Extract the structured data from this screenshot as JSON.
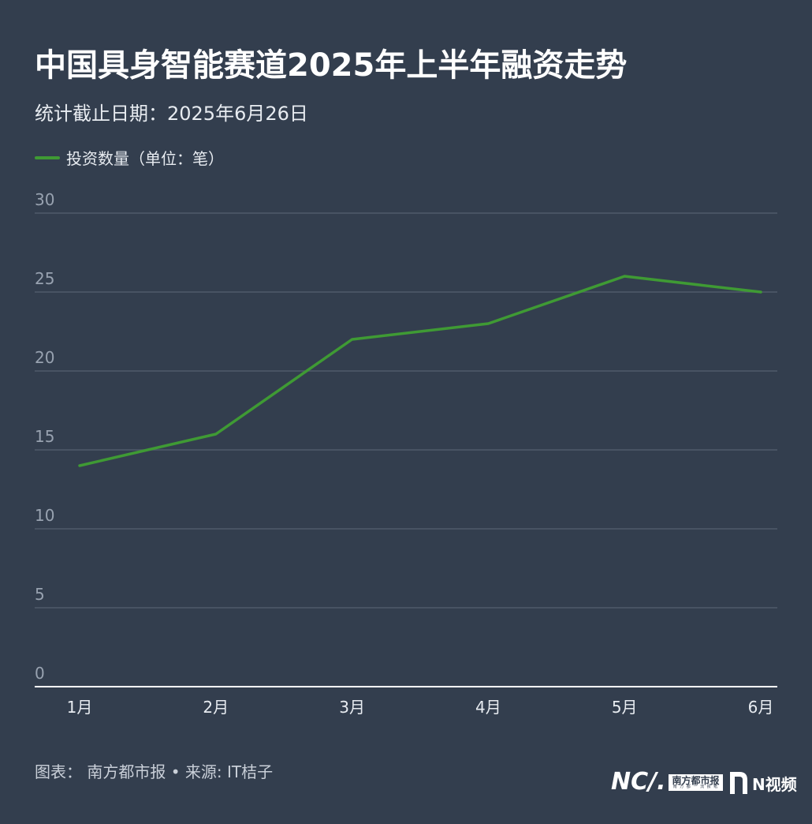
{
  "header": {
    "title": "中国具身智能赛道2025年上半年融资走势",
    "subtitle": "统计截止日期：2025年6月26日"
  },
  "legend": {
    "label": "投资数量（单位：笔）",
    "color": "#3f9a34"
  },
  "footer": {
    "source": "图表： 南方都市报 • 来源: IT桔子",
    "brand_nd_mark": "NC/.",
    "brand_nd_name": "南方都市报",
    "brand_nd_slogan": "南 方 都 一 流 报 纸",
    "brand_video": "N视频"
  },
  "chart_data": {
    "type": "line",
    "title": "中国具身智能赛道2025年上半年融资走势",
    "subtitle": "统计截止日期：2025年6月26日",
    "categories": [
      "1月",
      "2月",
      "3月",
      "4月",
      "5月",
      "6月"
    ],
    "series": [
      {
        "name": "投资数量（单位：笔）",
        "values": [
          14,
          16,
          22,
          23,
          26,
          25
        ],
        "color": "#3f9a34"
      }
    ],
    "ylim": [
      0,
      30
    ],
    "yticks": [
      0,
      5,
      10,
      15,
      20,
      25,
      30
    ],
    "grid": true,
    "legend_position": "top-left"
  }
}
